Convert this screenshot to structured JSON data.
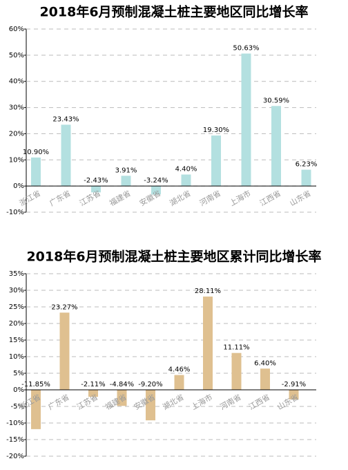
{
  "chart_data": [
    {
      "type": "bar",
      "title": "2018年6月预制混凝土桩主要地区同比增长率",
      "categories": [
        "浙江省",
        "广东省",
        "江苏省",
        "福建省",
        "安徽省",
        "湖北省",
        "河南省",
        "上海市",
        "江西省",
        "山东省"
      ],
      "values": [
        10.9,
        23.43,
        -2.43,
        3.91,
        -3.24,
        4.4,
        19.3,
        50.63,
        30.59,
        6.23
      ],
      "value_labels": [
        "10.90%",
        "23.43%",
        "-2.43%",
        "3.91%",
        "-3.24%",
        "4.40%",
        "19.30%",
        "50.63%",
        "30.59%",
        "6.23%"
      ],
      "color": "#b3e0e0",
      "ylim": [
        -10,
        60
      ],
      "yticks": [
        {
          "value": -10,
          "label": "-10%"
        },
        {
          "value": 0,
          "label": "0%"
        },
        {
          "value": 10,
          "label": "10%"
        },
        {
          "value": 20,
          "label": "20%"
        },
        {
          "value": 30,
          "label": "30%"
        },
        {
          "value": 40,
          "label": "40%"
        },
        {
          "value": 50,
          "label": "50%"
        },
        {
          "value": 60,
          "label": "60%"
        }
      ],
      "grid": true
    },
    {
      "type": "bar",
      "title": "2018年6月预制混凝土桩主要地区累计同比增长率",
      "categories": [
        "浙江省",
        "广东省",
        "江苏省",
        "福建省",
        "安徽省",
        "湖北省",
        "上海市",
        "河南省",
        "江西省",
        "山东省"
      ],
      "values": [
        -11.85,
        23.27,
        -2.11,
        -4.84,
        -9.2,
        4.46,
        28.11,
        11.11,
        6.4,
        -2.91
      ],
      "value_labels": [
        "-11.85%",
        "23.27%",
        "-2.11%",
        "-4.84%",
        "-9.20%",
        "4.46%",
        "28.11%",
        "11.11%",
        "6.40%",
        "-2.91%"
      ],
      "color": "#dfc090",
      "ylim": [
        -20,
        35
      ],
      "yticks": [
        {
          "value": -20,
          "label": "-20%"
        },
        {
          "value": -15,
          "label": "-15%"
        },
        {
          "value": -10,
          "label": "-10%"
        },
        {
          "value": -5,
          "label": "-5%"
        },
        {
          "value": 0,
          "label": "0%"
        },
        {
          "value": 5,
          "label": "5%"
        },
        {
          "value": 10,
          "label": "10%"
        },
        {
          "value": 15,
          "label": "15%"
        },
        {
          "value": 20,
          "label": "20%"
        },
        {
          "value": 25,
          "label": "25%"
        },
        {
          "value": 30,
          "label": "30%"
        },
        {
          "value": 35,
          "label": "35%"
        }
      ],
      "grid": true
    }
  ]
}
